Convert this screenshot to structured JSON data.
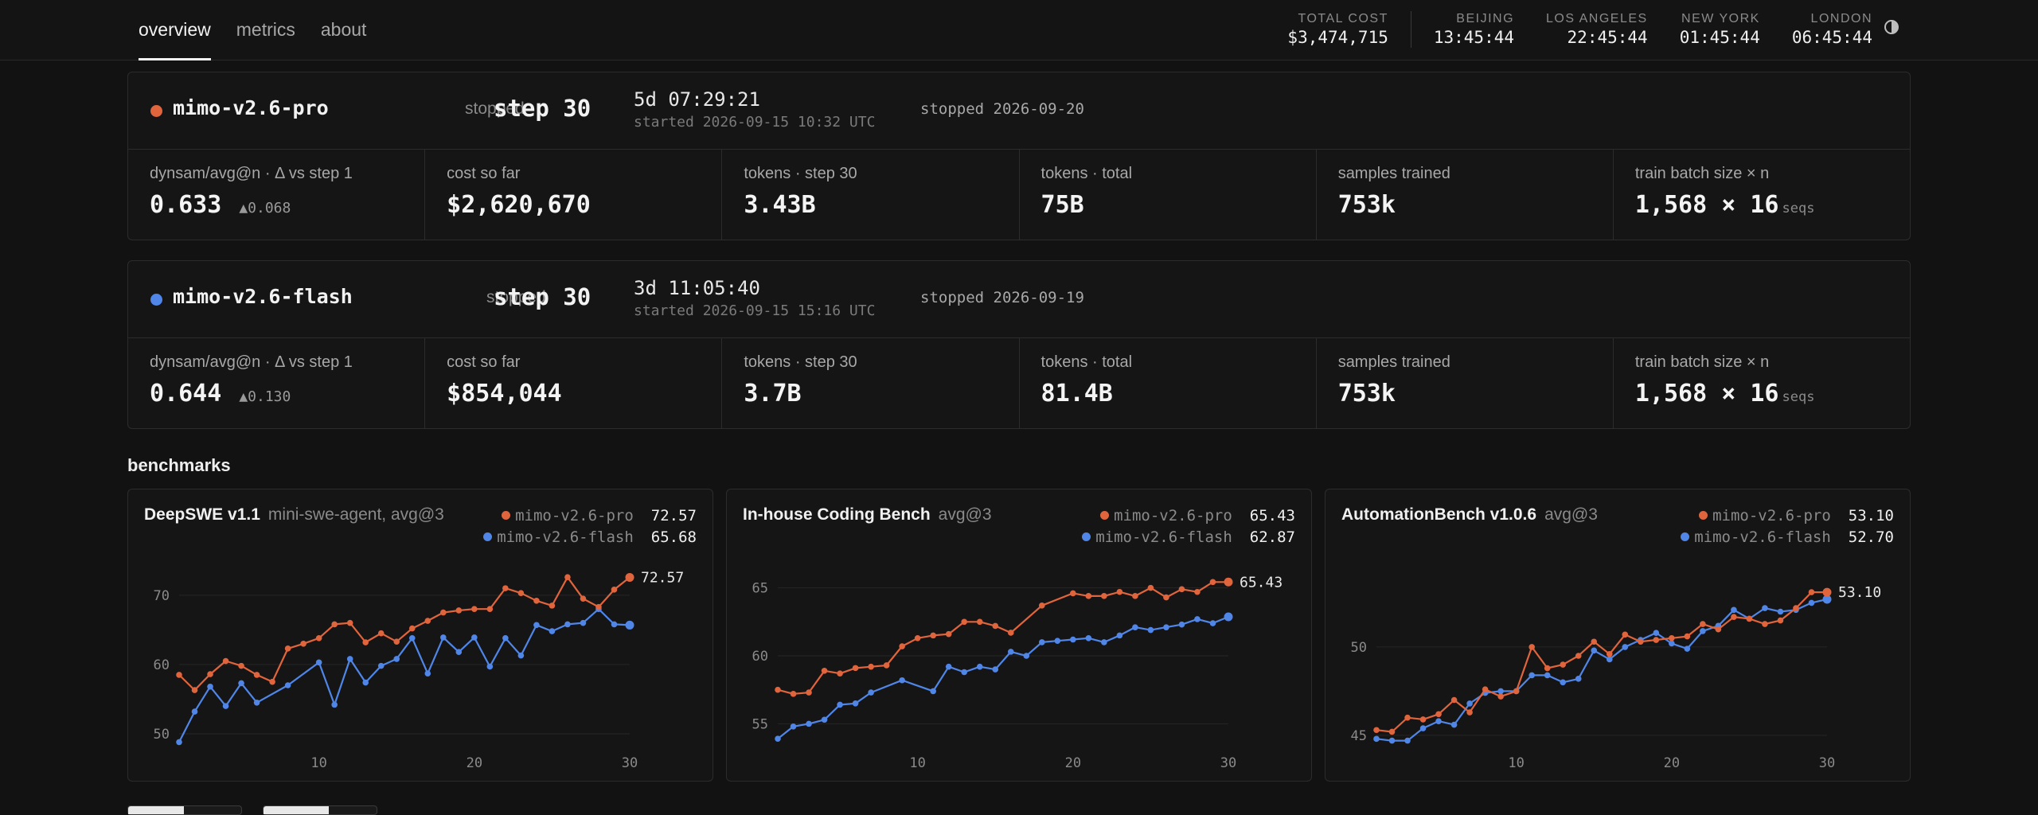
{
  "nav": {
    "tabs": [
      {
        "label": "overview",
        "active": true
      },
      {
        "label": "metrics",
        "active": false
      },
      {
        "label": "about",
        "active": false
      }
    ]
  },
  "header": {
    "total_cost_label": "TOTAL COST",
    "total_cost": "$3,474,715",
    "clocks": [
      {
        "label": "BEIJING",
        "time": "13:45:44"
      },
      {
        "label": "LOS ANGELES",
        "time": "22:45:44"
      },
      {
        "label": "NEW YORK",
        "time": "01:45:44"
      },
      {
        "label": "LONDON",
        "time": "06:45:44"
      }
    ],
    "theme_icon": "half-circle-icon"
  },
  "colors": {
    "pro": "#e0643c",
    "flash": "#4f86e8"
  },
  "runs": [
    {
      "name": "mimo-v2.6-pro",
      "status": "stopped",
      "step": "step 30",
      "elapsed": "5d 07:29:21",
      "started": "started 2026-09-15 10:32 UTC",
      "stopped": "stopped 2026-09-20",
      "metrics": [
        {
          "label": "dynsam/avg@n · Δ vs step 1",
          "value": "0.633",
          "delta": "▲0.068"
        },
        {
          "label": "cost so far",
          "value": "$2,620,670"
        },
        {
          "label": "tokens · step 30",
          "value": "3.43B"
        },
        {
          "label": "tokens · total",
          "value": "75B"
        },
        {
          "label": "samples trained",
          "value": "753k"
        },
        {
          "label": "train batch size × n",
          "value": "1,568 × 16",
          "unit": "seqs"
        }
      ]
    },
    {
      "name": "mimo-v2.6-flash",
      "status": "stopped",
      "step": "step 30",
      "elapsed": "3d 11:05:40",
      "started": "started 2026-09-15 15:16 UTC",
      "stopped": "stopped 2026-09-19",
      "metrics": [
        {
          "label": "dynsam/avg@n · Δ vs step 1",
          "value": "0.644",
          "delta": "▲0.130"
        },
        {
          "label": "cost so far",
          "value": "$854,044"
        },
        {
          "label": "tokens · step 30",
          "value": "3.7B"
        },
        {
          "label": "tokens · total",
          "value": "81.4B"
        },
        {
          "label": "samples trained",
          "value": "753k"
        },
        {
          "label": "train batch size × n",
          "value": "1,568 × 16",
          "unit": "seqs"
        }
      ]
    }
  ],
  "benchmarks_title": "benchmarks",
  "chart_data": [
    {
      "type": "line",
      "title": "DeepSWE v1.1",
      "subtitle": "mini-swe-agent, avg@3",
      "xlim": [
        1,
        30
      ],
      "ylim": [
        48.5,
        74
      ],
      "yticks": [
        50,
        60,
        70
      ],
      "xticks": [
        10,
        20,
        30
      ],
      "grid": true,
      "legend_position": "top-right",
      "series": [
        {
          "name": "mimo-v2.6-pro",
          "final": "72.57",
          "color": "#e0643c",
          "x": [
            1,
            2,
            3,
            4,
            5,
            6,
            7,
            8,
            9,
            10,
            11,
            12,
            13,
            14,
            15,
            16,
            17,
            18,
            19,
            20,
            21,
            22,
            23,
            24,
            25,
            26,
            27,
            28,
            29,
            30
          ],
          "y": [
            58.5,
            56.3,
            58.6,
            60.5,
            59.8,
            58.5,
            57.5,
            62.3,
            63.0,
            63.8,
            65.8,
            66.0,
            63.2,
            64.5,
            63.3,
            65.2,
            66.3,
            67.5,
            67.8,
            68.0,
            68.0,
            71.0,
            70.3,
            69.2,
            68.5,
            72.6,
            69.5,
            68.3,
            70.8,
            72.57
          ]
        },
        {
          "name": "mimo-v2.6-flash",
          "final": "65.68",
          "color": "#4f86e8",
          "x": [
            1,
            2,
            3,
            4,
            5,
            6,
            8,
            10,
            11,
            12,
            13,
            14,
            15,
            16,
            17,
            18,
            19,
            20,
            21,
            22,
            23,
            24,
            25,
            26,
            27,
            28,
            29,
            30
          ],
          "y": [
            48.8,
            53.2,
            56.8,
            54.0,
            57.3,
            54.5,
            57.0,
            60.3,
            54.2,
            60.8,
            57.4,
            59.8,
            60.8,
            63.8,
            58.7,
            63.9,
            61.8,
            63.9,
            59.7,
            63.8,
            61.3,
            65.7,
            64.8,
            65.8,
            66.0,
            68.0,
            65.8,
            65.68
          ]
        }
      ]
    },
    {
      "type": "line",
      "title": "In-house Coding Bench",
      "subtitle": "avg@3",
      "xlim": [
        1,
        30
      ],
      "ylim": [
        53.5,
        66.5
      ],
      "yticks": [
        55,
        60,
        65
      ],
      "xticks": [
        10,
        20,
        30
      ],
      "grid": true,
      "legend_position": "top-right",
      "series": [
        {
          "name": "mimo-v2.6-pro",
          "final": "65.43",
          "color": "#e0643c",
          "x": [
            1,
            2,
            3,
            4,
            5,
            6,
            7,
            8,
            9,
            10,
            11,
            12,
            13,
            14,
            15,
            16,
            18,
            20,
            21,
            22,
            23,
            24,
            25,
            26,
            27,
            28,
            29,
            30
          ],
          "y": [
            57.5,
            57.2,
            57.3,
            58.9,
            58.7,
            59.1,
            59.2,
            59.3,
            60.7,
            61.3,
            61.5,
            61.6,
            62.5,
            62.5,
            62.2,
            61.7,
            63.7,
            64.6,
            64.4,
            64.4,
            64.7,
            64.4,
            65.0,
            64.3,
            64.9,
            64.7,
            65.43,
            65.43
          ]
        },
        {
          "name": "mimo-v2.6-flash",
          "final": "62.87",
          "color": "#4f86e8",
          "x": [
            1,
            2,
            3,
            4,
            5,
            6,
            7,
            9,
            11,
            12,
            13,
            14,
            15,
            16,
            17,
            18,
            19,
            20,
            21,
            22,
            23,
            24,
            25,
            26,
            27,
            28,
            29,
            30
          ],
          "y": [
            53.9,
            54.8,
            55.0,
            55.3,
            56.4,
            56.5,
            57.3,
            58.2,
            57.4,
            59.2,
            58.8,
            59.2,
            59.0,
            60.3,
            60.0,
            61.0,
            61.1,
            61.2,
            61.3,
            61.0,
            61.5,
            62.1,
            61.9,
            62.1,
            62.3,
            62.7,
            62.4,
            62.87
          ]
        }
      ]
    },
    {
      "type": "line",
      "title": "AutomationBench v1.0.6",
      "subtitle": "avg@3",
      "xlim": [
        1,
        30
      ],
      "ylim": [
        44.5,
        54.5
      ],
      "yticks": [
        45,
        50
      ],
      "xticks": [
        10,
        20,
        30
      ],
      "grid": true,
      "legend_position": "top-right",
      "series": [
        {
          "name": "mimo-v2.6-pro",
          "final": "53.10",
          "color": "#e0643c",
          "x": [
            1,
            2,
            3,
            4,
            5,
            6,
            7,
            8,
            9,
            10,
            11,
            12,
            13,
            14,
            15,
            16,
            17,
            18,
            19,
            20,
            21,
            22,
            23,
            24,
            25,
            26,
            27,
            28,
            29,
            30
          ],
          "y": [
            45.3,
            45.2,
            46.0,
            45.9,
            46.2,
            47.0,
            46.3,
            47.6,
            47.2,
            47.5,
            50.0,
            48.8,
            49.0,
            49.5,
            50.3,
            49.6,
            50.7,
            50.3,
            50.4,
            50.5,
            50.6,
            51.3,
            51.0,
            51.7,
            51.6,
            51.3,
            51.5,
            52.2,
            53.1,
            53.1
          ]
        },
        {
          "name": "mimo-v2.6-flash",
          "final": "52.70",
          "color": "#4f86e8",
          "x": [
            1,
            2,
            3,
            4,
            5,
            6,
            7,
            8,
            9,
            10,
            11,
            12,
            13,
            14,
            15,
            16,
            17,
            18,
            19,
            20,
            21,
            22,
            23,
            24,
            25,
            26,
            27,
            28,
            29,
            30
          ],
          "y": [
            44.8,
            44.7,
            44.7,
            45.4,
            45.8,
            45.6,
            46.8,
            47.4,
            47.5,
            47.5,
            48.4,
            48.4,
            48.0,
            48.2,
            49.8,
            49.3,
            50.0,
            50.4,
            50.8,
            50.2,
            49.9,
            50.9,
            51.2,
            52.1,
            51.6,
            52.2,
            52.0,
            52.1,
            52.5,
            52.7
          ]
        }
      ]
    }
  ]
}
